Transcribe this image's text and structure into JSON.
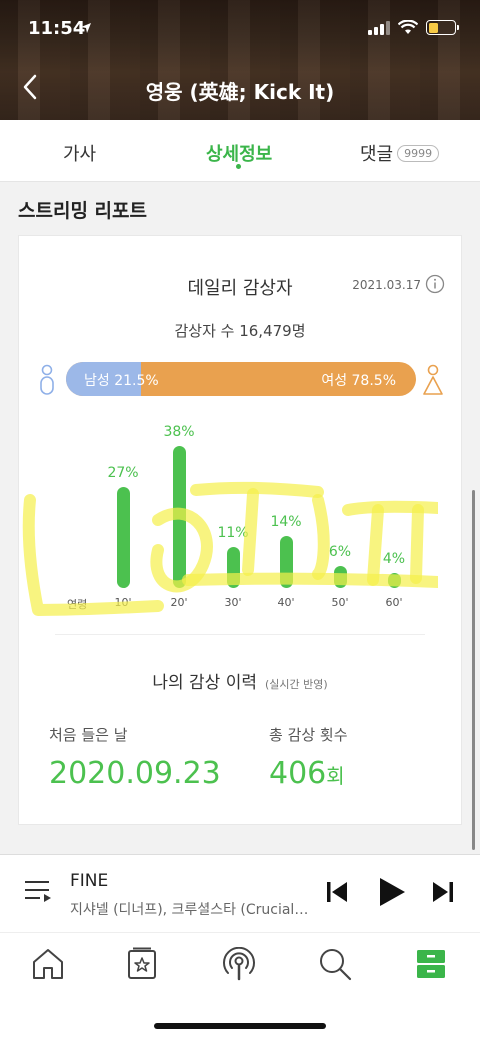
{
  "status_bar": {
    "time": "11:54"
  },
  "header": {
    "title": "영웅 (英雄; Kick It)"
  },
  "tabs": [
    {
      "label": "가사"
    },
    {
      "label": "상세정보"
    },
    {
      "label": "댓글",
      "badge": "9999"
    }
  ],
  "section_title": "스트리밍 리포트",
  "daily": {
    "title": "데일리 감상자",
    "date": "2021.03.17",
    "listeners": "감상자 수 16,479명",
    "male_label": "남성 21.5%",
    "female_label": "여성 78.5%",
    "male_fraction": 0.215,
    "male_color": "#9cb8e8",
    "female_color": "#e9a14f"
  },
  "chart_data": {
    "type": "bar",
    "xlabel": "연령",
    "categories": [
      "10'",
      "20'",
      "30'",
      "40'",
      "50'",
      "60'"
    ],
    "values": [
      27,
      38,
      11,
      14,
      6,
      4
    ],
    "value_labels": [
      "27%",
      "38%",
      "11%",
      "14%",
      "6%",
      "4%"
    ],
    "color": "#4cc14f"
  },
  "history": {
    "title": "나의 감상 이력",
    "subtitle": "(실시간 반영)",
    "first_label": "처음 들은 날",
    "first_value": "2020.09.23",
    "total_label": "총 감상 횟수",
    "total_value": "406",
    "total_unit": "회"
  },
  "player": {
    "song_title": "FINE",
    "artist": "지샤넬 (디너프), 크루셜스타 (Crucial Star)"
  },
  "icons": {
    "back": "chevron-left-icon",
    "info": "info-icon",
    "male": "male-icon",
    "female": "female-icon",
    "playlist": "playlist-icon",
    "prev": "skip-previous-icon",
    "play": "play-icon",
    "next": "skip-next-icon",
    "home": "home-icon",
    "library": "star-card-icon",
    "podcast": "podcast-icon",
    "search": "search-icon",
    "storage": "drawer-icon"
  },
  "accent_color": "#3bb54a"
}
